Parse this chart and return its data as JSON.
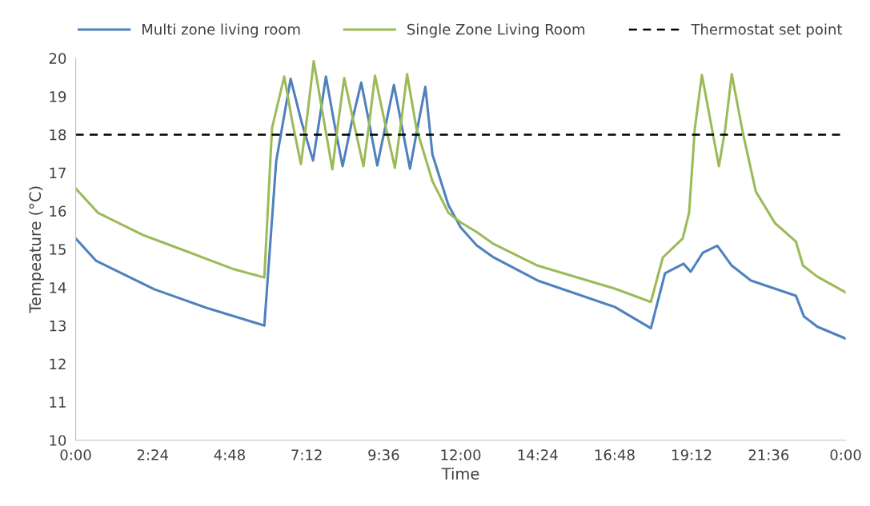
{
  "chart_data": {
    "type": "line",
    "xlabel": "Time",
    "ylabel": "Tempeature (°C)",
    "xlim": [
      0,
      24
    ],
    "xticks": [
      {
        "value": 0,
        "label": "0:00"
      },
      {
        "value": 2.4,
        "label": "2:24"
      },
      {
        "value": 4.8,
        "label": "4:48"
      },
      {
        "value": 7.2,
        "label": "7:12"
      },
      {
        "value": 9.6,
        "label": "9:36"
      },
      {
        "value": 12,
        "label": "12:00"
      },
      {
        "value": 14.4,
        "label": "14:24"
      },
      {
        "value": 16.8,
        "label": "16:48"
      },
      {
        "value": 19.2,
        "label": "19:12"
      },
      {
        "value": 21.6,
        "label": "21:36"
      },
      {
        "value": 24,
        "label": "0:00"
      }
    ],
    "ylim": [
      10,
      20
    ],
    "yticks": [
      10,
      11,
      12,
      13,
      14,
      15,
      16,
      17,
      18,
      19,
      20
    ],
    "grid": false,
    "legend": "top",
    "marker": "none",
    "line_style": "solid",
    "series": [
      {
        "name": "Multi zone living room",
        "color": "#4f81bd",
        "x": [
          0,
          0.63,
          2.45,
          4.13,
          5.88,
          6.25,
          6.7,
          7.05,
          7.4,
          7.6,
          7.8,
          8.06,
          8.32,
          8.6,
          8.9,
          9.15,
          9.4,
          9.65,
          9.92,
          10.17,
          10.42,
          10.66,
          10.9,
          11.12,
          11.62,
          12,
          12.5,
          13,
          14.4,
          16.8,
          17.93,
          18.37,
          18.95,
          19.17,
          19.55,
          20.0,
          20.45,
          21.05,
          22.45,
          22.7,
          23.12,
          24
        ],
        "values": [
          15.28,
          14.7,
          13.95,
          13.45,
          13.0,
          17.3,
          19.46,
          18.3,
          17.32,
          18.4,
          19.52,
          18.3,
          17.17,
          18.3,
          19.36,
          18.3,
          17.19,
          18.2,
          19.3,
          18.2,
          17.11,
          18.2,
          19.25,
          17.48,
          16.15,
          15.57,
          15.1,
          14.8,
          14.18,
          13.49,
          12.93,
          14.37,
          14.62,
          14.41,
          14.91,
          15.09,
          14.57,
          14.18,
          13.78,
          13.24,
          12.97,
          12.66
        ]
      },
      {
        "name": "Single Zone Living Room",
        "color": "#9bbb59",
        "x": [
          0,
          0.7,
          2.13,
          3.63,
          4.95,
          5.88,
          6.12,
          6.5,
          6.76,
          7.02,
          7.22,
          7.42,
          7.71,
          8.0,
          8.18,
          8.37,
          8.67,
          8.97,
          9.15,
          9.33,
          9.64,
          9.95,
          10.14,
          10.33,
          10.62,
          11.12,
          11.62,
          12,
          12.5,
          13,
          14.4,
          16.8,
          17.93,
          18.3,
          18.92,
          19.12,
          19.3,
          19.52,
          20.05,
          20.25,
          20.45,
          20.8,
          21.2,
          21.8,
          22.45,
          22.67,
          23.12,
          24
        ],
        "values": [
          16.59,
          15.95,
          15.36,
          14.89,
          14.47,
          14.26,
          18.17,
          19.52,
          18.3,
          17.23,
          18.5,
          19.92,
          18.5,
          17.09,
          18.3,
          19.48,
          18.3,
          17.17,
          18.3,
          19.54,
          18.3,
          17.13,
          18.3,
          19.58,
          18.17,
          16.78,
          15.95,
          15.7,
          15.45,
          15.15,
          14.57,
          13.97,
          13.62,
          14.78,
          15.28,
          15.95,
          18.17,
          19.56,
          17.17,
          18.17,
          19.58,
          18.03,
          16.51,
          15.68,
          15.2,
          14.57,
          14.28,
          13.87
        ]
      }
    ],
    "ref_lines": [
      {
        "axis": "y",
        "value": 18,
        "label": "Thermostat set point",
        "color": "#000000",
        "line_style": "dashed"
      }
    ]
  }
}
